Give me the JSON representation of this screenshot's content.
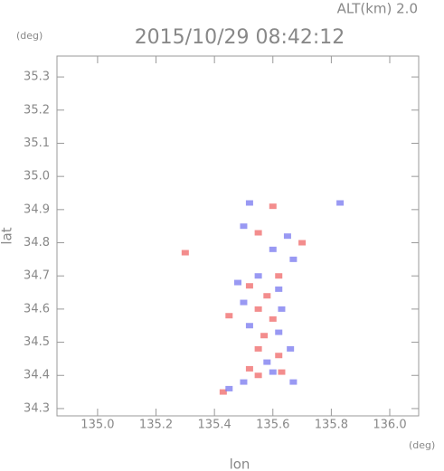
{
  "chart_data": {
    "type": "scatter",
    "title": "2015/10/29 08:42:12",
    "annotation": "ALT(km) 2.0",
    "y_unit": "(deg)",
    "x_unit": "(deg)",
    "xlabel": "lon",
    "ylabel": "lat",
    "xlim": [
      134.861,
      136.099
    ],
    "ylim": [
      34.278,
      35.363
    ],
    "xticks": [
      {
        "value": 135,
        "label": "135.0"
      },
      135.2,
      135.4,
      135.6,
      135.8,
      {
        "value": 136,
        "label": "136.0"
      }
    ],
    "yticks": [
      34.3,
      34.4,
      34.5,
      34.6,
      34.7,
      34.8,
      34.9,
      {
        "value": 35,
        "label": "35.0"
      },
      35.1,
      35.2,
      35.3
    ],
    "x": [
      135.43,
      135.45,
      135.5,
      135.55,
      135.6,
      135.63,
      135.52,
      135.58,
      135.62,
      135.66,
      135.55,
      135.57,
      135.62,
      135.52,
      135.6,
      135.55,
      135.63,
      135.5,
      135.58,
      135.62,
      135.52,
      135.55,
      135.62,
      135.48,
      135.6,
      135.7,
      135.65,
      135.5,
      135.55,
      135.52,
      135.6,
      135.83,
      135.3,
      135.67,
      135.45,
      135.67
    ],
    "y": [
      34.35,
      34.36,
      34.38,
      34.4,
      34.41,
      34.41,
      34.42,
      34.44,
      34.46,
      34.48,
      34.48,
      34.52,
      34.53,
      34.55,
      34.57,
      34.6,
      34.6,
      34.62,
      34.64,
      34.66,
      34.67,
      34.7,
      34.7,
      34.68,
      34.78,
      34.8,
      34.82,
      34.85,
      34.83,
      34.92,
      34.91,
      34.92,
      34.77,
      34.75,
      34.58,
      34.38
    ],
    "colors": [
      "#f07070",
      "#8080f0",
      "#8080f0",
      "#f07070",
      "#8080f0",
      "#f07070",
      "#f07070",
      "#8080f0",
      "#f07070",
      "#8080f0",
      "#f07070",
      "#f07070",
      "#8080f0",
      "#8080f0",
      "#f07070",
      "#f07070",
      "#8080f0",
      "#8080f0",
      "#f07070",
      "#8080f0",
      "#f07070",
      "#8080f0",
      "#f07070",
      "#8080f0",
      "#8080f0",
      "#f07070",
      "#8080f0",
      "#8080f0",
      "#f07070",
      "#8080f0",
      "#f07070",
      "#8080f0",
      "#f07070",
      "#8080f0",
      "#f07070",
      "#8080f0"
    ]
  }
}
